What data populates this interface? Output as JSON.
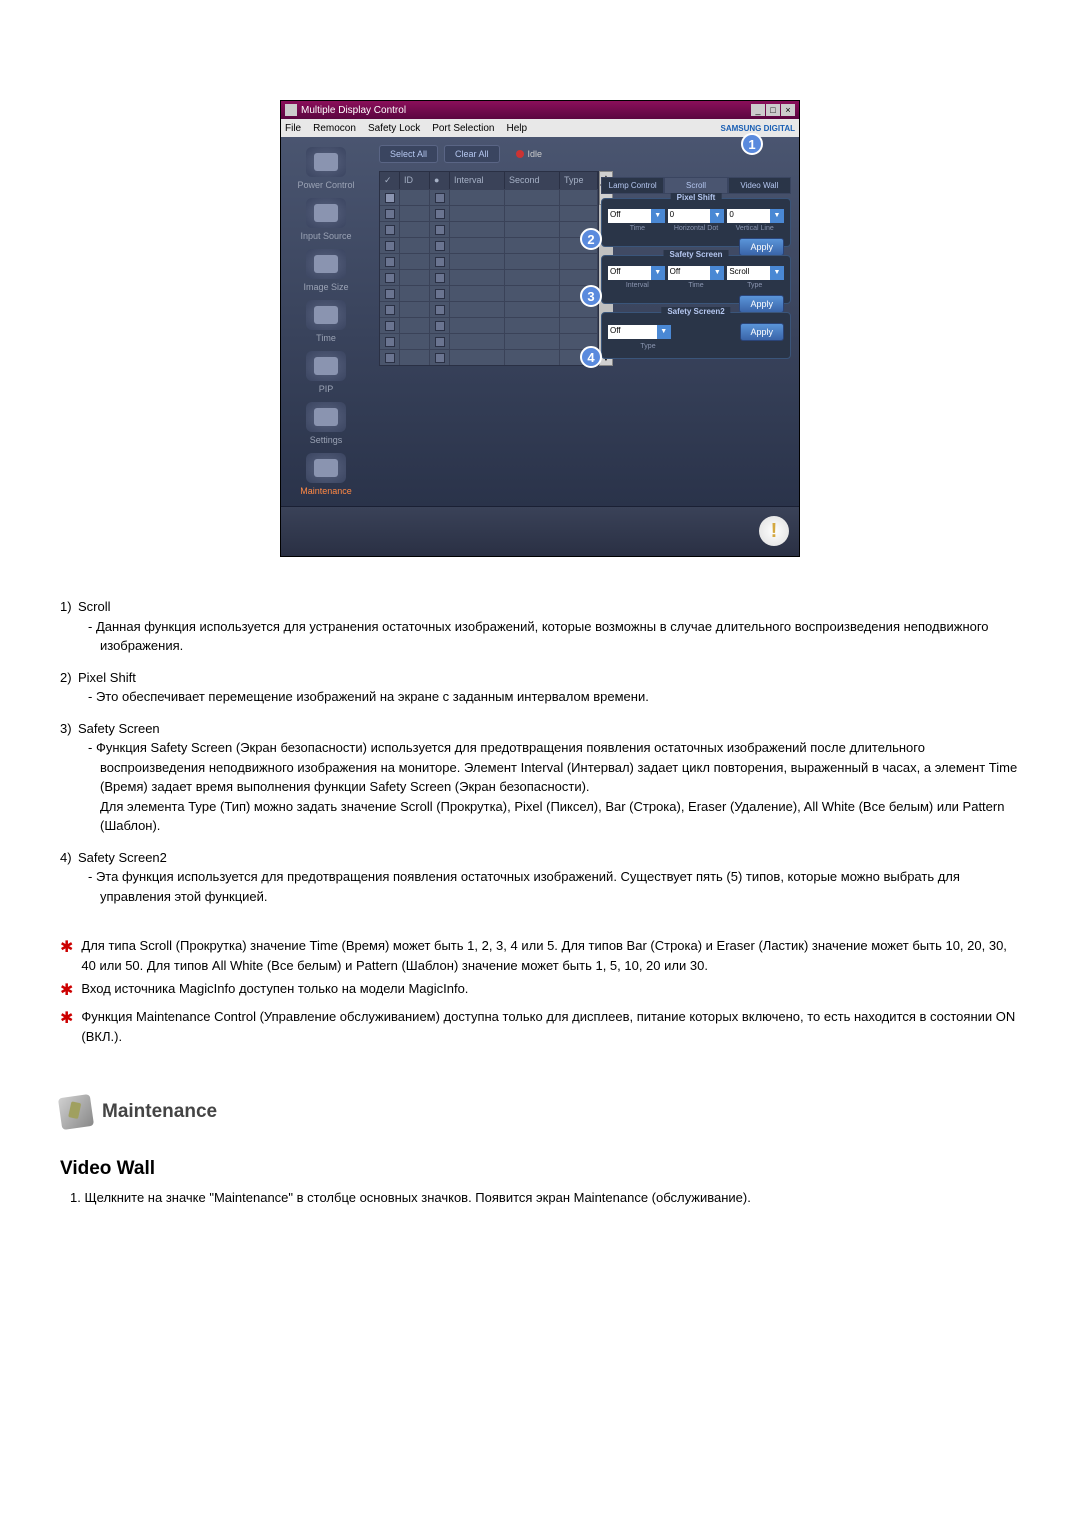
{
  "app": {
    "title": "Multiple Display Control",
    "menubar": {
      "file": "File",
      "remocon": "Remocon",
      "safetyLock": "Safety Lock",
      "portSelection": "Port Selection",
      "help": "Help"
    },
    "brand": "SAMSUNG DIGITAL"
  },
  "sidebar": {
    "items": [
      {
        "label": "Power Control"
      },
      {
        "label": "Input Source"
      },
      {
        "label": "Image Size"
      },
      {
        "label": "Time"
      },
      {
        "label": "PIP"
      },
      {
        "label": "Settings"
      },
      {
        "label": "Maintenance"
      }
    ]
  },
  "topButtons": {
    "selectAll": "Select All",
    "clearAll": "Clear All",
    "idle": "Idle"
  },
  "table": {
    "headers": {
      "id": "ID",
      "interval": "Interval",
      "second": "Second",
      "type": "Type"
    },
    "rowCount": 11
  },
  "tabs": {
    "lamp": "Lamp Control",
    "scroll": "Scroll",
    "videoWall": "Video Wall"
  },
  "panels": {
    "pixelShift": {
      "title": "Pixel Shift",
      "fields": {
        "main": "Off",
        "h": "0",
        "v": "0"
      },
      "labels": {
        "time": "Time",
        "hd": "Horizontal Dot",
        "vl": "Vertical Line"
      },
      "apply": "Apply"
    },
    "safetyScreen": {
      "title": "Safety Screen",
      "fields": {
        "interval": "Off",
        "time": "Off",
        "type": "Scroll"
      },
      "labels": {
        "interval": "Interval",
        "time": "Time",
        "type": "Type"
      },
      "apply": "Apply"
    },
    "safetyScreen2": {
      "title": "Safety Screen2",
      "fields": {
        "type": "Off"
      },
      "labels": {
        "type": "Type"
      },
      "apply": "Apply"
    }
  },
  "markers": {
    "m1": "1",
    "m2": "2",
    "m3": "3",
    "m4": "4"
  },
  "descriptions": [
    {
      "num": "1)",
      "title": "Scroll",
      "sub": "Данная функция используется для устранения остаточных изображений, которые возможны в случае длительного воспроизведения неподвижного изображения."
    },
    {
      "num": "2)",
      "title": "Pixel Shift",
      "sub": "Это обеспечивает перемещение изображений на экране с заданным интервалом времени."
    },
    {
      "num": "3)",
      "title": "Safety Screen",
      "sub": "Функция Safety Screen (Экран безопасности) используется для предотвращения появления остаточных изображений после длительного воспроизведения неподвижного изображения на мониторе. Элемент Interval (Интервал) задает цикл повторения, выраженный в часах, а элемент Time (Время) задает время выполнения функции Safety Screen (Экран безопасности).\nДля элемента Type (Тип) можно задать значение Scroll (Прокрутка), Pixel (Пиксел), Bar (Строка), Eraser (Удаление), All White (Все белым) или Pattern (Шаблон)."
    },
    {
      "num": "4)",
      "title": "Safety Screen2",
      "sub": "Эта функция используется для предотвращения появления остаточных изображений. Существует пять (5) типов, которые можно выбрать для управления этой функцией."
    }
  ],
  "starNotes": [
    "Для типа Scroll (Прокрутка) значение Time (Время) может быть 1, 2, 3, 4 или 5. Для типов Bar (Строка) и Eraser (Ластик) значение может быть 10, 20, 30, 40 или 50. Для типов All White (Все белым) и Pattern (Шаблон) значение может быть 1, 5, 10, 20 или 30.",
    "Вход источника MagicInfo доступен только на модели MagicInfo.",
    "Функция Maintenance Control (Управление обслуживанием) доступна только для дисплеев, питание которых включено, то есть находится в состоянии ON (ВКЛ.)."
  ],
  "maintenance": {
    "heading": "Maintenance"
  },
  "videoWall": {
    "heading": "Video Wall",
    "step1": "1. Щелкните на значке \"Maintenance\" в столбце основных значков. Появится экран Maintenance (обслуживание)."
  }
}
